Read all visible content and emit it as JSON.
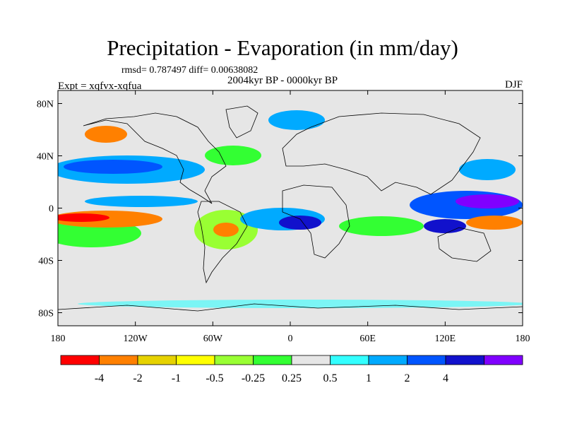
{
  "title": "Precipitation - Evaporation (in mm/day)",
  "stats": "rmsd= 0.787497 diff= 0.00638082",
  "expt": "Expt = xqfvx-xqfua",
  "period": "2004kyr BP - 0000kyr BP",
  "season": "DJF",
  "map": {
    "lon_range": [
      -180,
      180
    ],
    "lat_range": [
      -90,
      90
    ],
    "x_ticks": [
      {
        "lon": -180,
        "label": "180"
      },
      {
        "lon": -120,
        "label": "120W"
      },
      {
        "lon": -60,
        "label": "60W"
      },
      {
        "lon": 0,
        "label": "0"
      },
      {
        "lon": 60,
        "label": "60E"
      },
      {
        "lon": 120,
        "label": "120E"
      },
      {
        "lon": 180,
        "label": "180"
      }
    ],
    "y_ticks": [
      {
        "lat": 80,
        "label": "80N"
      },
      {
        "lat": 40,
        "label": "40N"
      },
      {
        "lat": 0,
        "label": "0"
      },
      {
        "lat": -40,
        "label": "40S"
      },
      {
        "lat": -80,
        "label": "80S"
      }
    ],
    "background_color": "#e6e6e6"
  },
  "colorbar": {
    "colors": [
      "#ff0000",
      "#ff8000",
      "#e6d200",
      "#ffff00",
      "#99ff33",
      "#33ff33",
      "#e6e6e6",
      "#33ffff",
      "#00aaff",
      "#0055ff",
      "#1111cc",
      "#8000ff"
    ],
    "labels": [
      "-4",
      "-2",
      "-1",
      "-0.5",
      "-0.25",
      "0.25",
      "0.5",
      "1",
      "2",
      "4"
    ]
  }
}
